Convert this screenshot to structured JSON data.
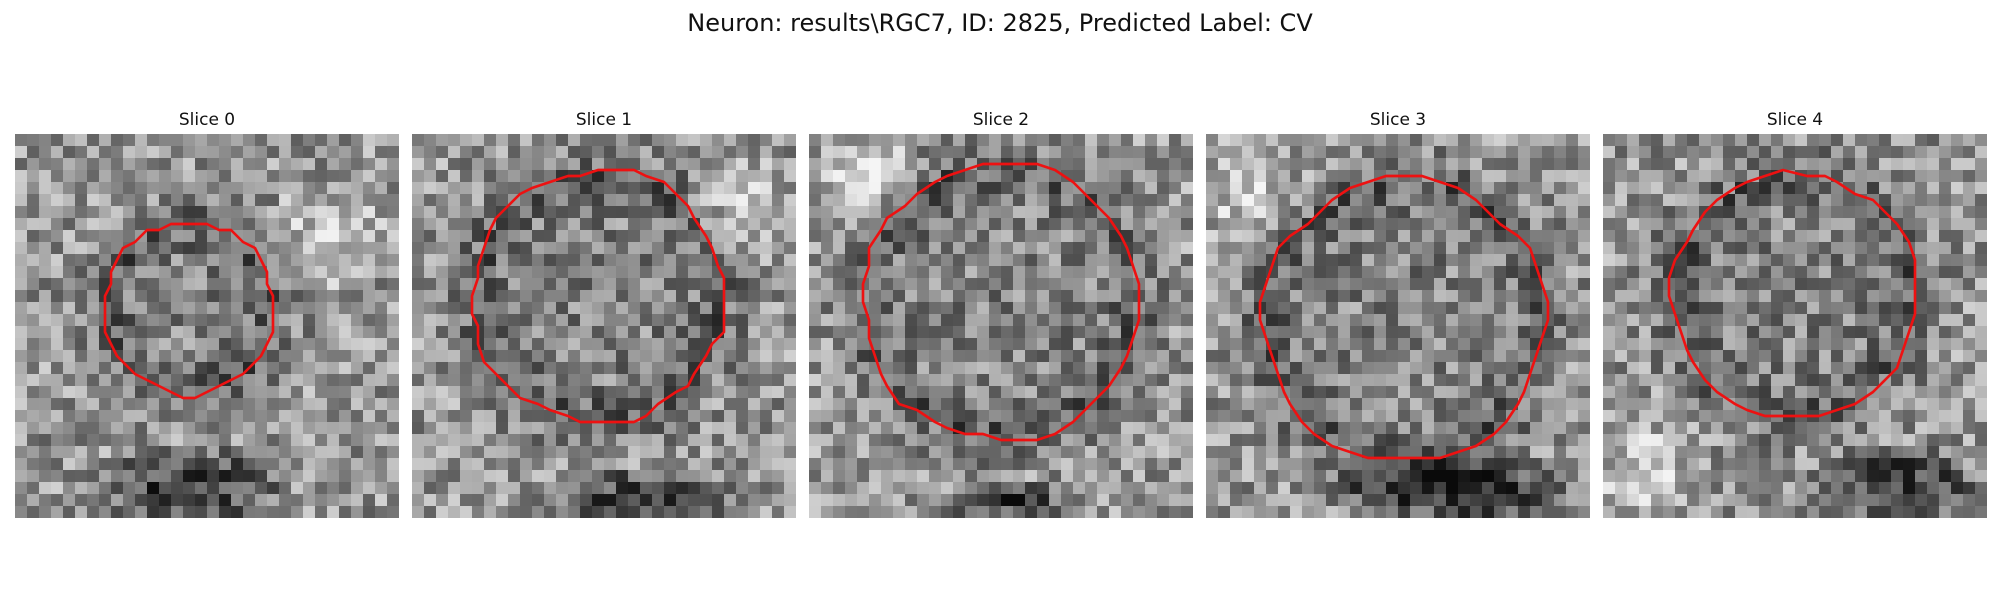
{
  "figure": {
    "title": "Neuron: results\\RGC7, ID: 2825, Predicted Label: CV"
  },
  "panels": [
    {
      "title": "Slice 0",
      "image": "grayscale-microscopy-tile",
      "contour_color": "#ee1111"
    },
    {
      "title": "Slice 1",
      "image": "grayscale-microscopy-tile",
      "contour_color": "#ee1111"
    },
    {
      "title": "Slice 2",
      "image": "grayscale-microscopy-tile",
      "contour_color": "#ee1111"
    },
    {
      "title": "Slice 3",
      "image": "grayscale-microscopy-tile",
      "contour_color": "#ee1111"
    },
    {
      "title": "Slice 4",
      "image": "grayscale-microscopy-tile",
      "contour_color": "#ee1111"
    }
  ]
}
